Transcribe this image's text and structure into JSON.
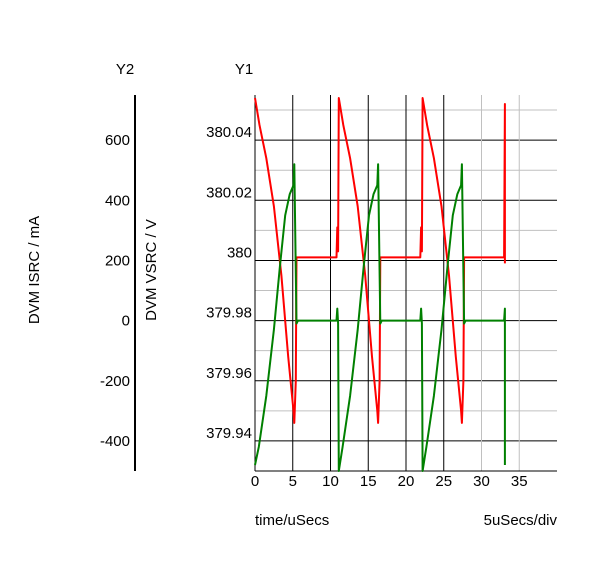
{
  "chart_data": {
    "type": "line",
    "axis_titles": {
      "y2_header": "Y2",
      "y1_header": "Y1"
    },
    "xlabel": "time/uSecs",
    "x_scale_note": "5uSecs/div",
    "x_ticks": [
      0,
      5,
      10,
      15,
      20,
      25,
      30,
      35
    ],
    "xlim": [
      0,
      40
    ],
    "y1": {
      "label": "DVM VSRC / V",
      "ticks": [
        "379.94",
        "379.96",
        "379.98",
        "380",
        "380.02",
        "380.04"
      ],
      "ylim": [
        379.93,
        380.055
      ]
    },
    "y2": {
      "label": "DVM ISRC / mA",
      "ticks": [
        -400,
        -200,
        0,
        200,
        400,
        600
      ],
      "ylim": [
        -500,
        750
      ]
    },
    "grid": true,
    "colors": {
      "vsrc": "#ff0000",
      "isrc": "#008000",
      "grid_major": "#000000",
      "grid_minor": "#c0c0c0"
    },
    "series": [
      {
        "axis": "y1",
        "color": "#ff0000",
        "points": [
          [
            0,
            380.054
          ],
          [
            0.6,
            380.045
          ],
          [
            1.5,
            380.034
          ],
          [
            2.5,
            380.018
          ],
          [
            3.5,
            379.995
          ],
          [
            4.4,
            379.968
          ],
          [
            5.1,
            379.95
          ],
          [
            5.2,
            379.946
          ],
          [
            5.4,
            379.96
          ],
          [
            5.5,
            380.001
          ],
          [
            10.8,
            380.001
          ],
          [
            10.9,
            380.011
          ],
          [
            11.0,
            380.003
          ],
          [
            11.1,
            380.054
          ],
          [
            11.7,
            380.045
          ],
          [
            12.6,
            380.034
          ],
          [
            13.6,
            380.018
          ],
          [
            14.6,
            379.995
          ],
          [
            15.5,
            379.968
          ],
          [
            16.2,
            379.95
          ],
          [
            16.3,
            379.946
          ],
          [
            16.5,
            379.96
          ],
          [
            16.6,
            380.001
          ],
          [
            21.9,
            380.001
          ],
          [
            22.0,
            380.011
          ],
          [
            22.1,
            380.003
          ],
          [
            22.2,
            380.054
          ],
          [
            22.8,
            380.045
          ],
          [
            23.7,
            380.034
          ],
          [
            24.7,
            380.018
          ],
          [
            25.7,
            379.995
          ],
          [
            26.6,
            379.968
          ],
          [
            27.3,
            379.95
          ],
          [
            27.4,
            379.946
          ],
          [
            27.6,
            379.96
          ],
          [
            27.7,
            380.001
          ],
          [
            33.0,
            380.001
          ],
          [
            33.1,
            380.052
          ],
          [
            33.1,
            379.999
          ]
        ]
      },
      {
        "axis": "y2",
        "color": "#008000",
        "points": [
          [
            0,
            -480
          ],
          [
            0.5,
            -420
          ],
          [
            1.5,
            -250
          ],
          [
            2.5,
            -30
          ],
          [
            3.3,
            180
          ],
          [
            4.0,
            350
          ],
          [
            4.6,
            420
          ],
          [
            5.1,
            450
          ],
          [
            5.2,
            520
          ],
          [
            5.5,
            -10
          ],
          [
            5.7,
            0
          ],
          [
            10.8,
            0
          ],
          [
            10.9,
            40
          ],
          [
            11.0,
            -10
          ],
          [
            11.1,
            -500
          ],
          [
            11.6,
            -420
          ],
          [
            12.6,
            -250
          ],
          [
            13.6,
            -30
          ],
          [
            14.4,
            180
          ],
          [
            15.1,
            350
          ],
          [
            15.7,
            420
          ],
          [
            16.2,
            450
          ],
          [
            16.3,
            520
          ],
          [
            16.6,
            -10
          ],
          [
            16.8,
            0
          ],
          [
            21.9,
            0
          ],
          [
            22.0,
            40
          ],
          [
            22.1,
            -10
          ],
          [
            22.2,
            -500
          ],
          [
            22.7,
            -420
          ],
          [
            23.7,
            -250
          ],
          [
            24.7,
            -30
          ],
          [
            25.5,
            180
          ],
          [
            26.2,
            350
          ],
          [
            26.8,
            420
          ],
          [
            27.3,
            450
          ],
          [
            27.4,
            520
          ],
          [
            27.7,
            -10
          ],
          [
            27.9,
            0
          ],
          [
            33.0,
            0
          ],
          [
            33.1,
            40
          ],
          [
            33.1,
            -480
          ]
        ]
      }
    ]
  }
}
